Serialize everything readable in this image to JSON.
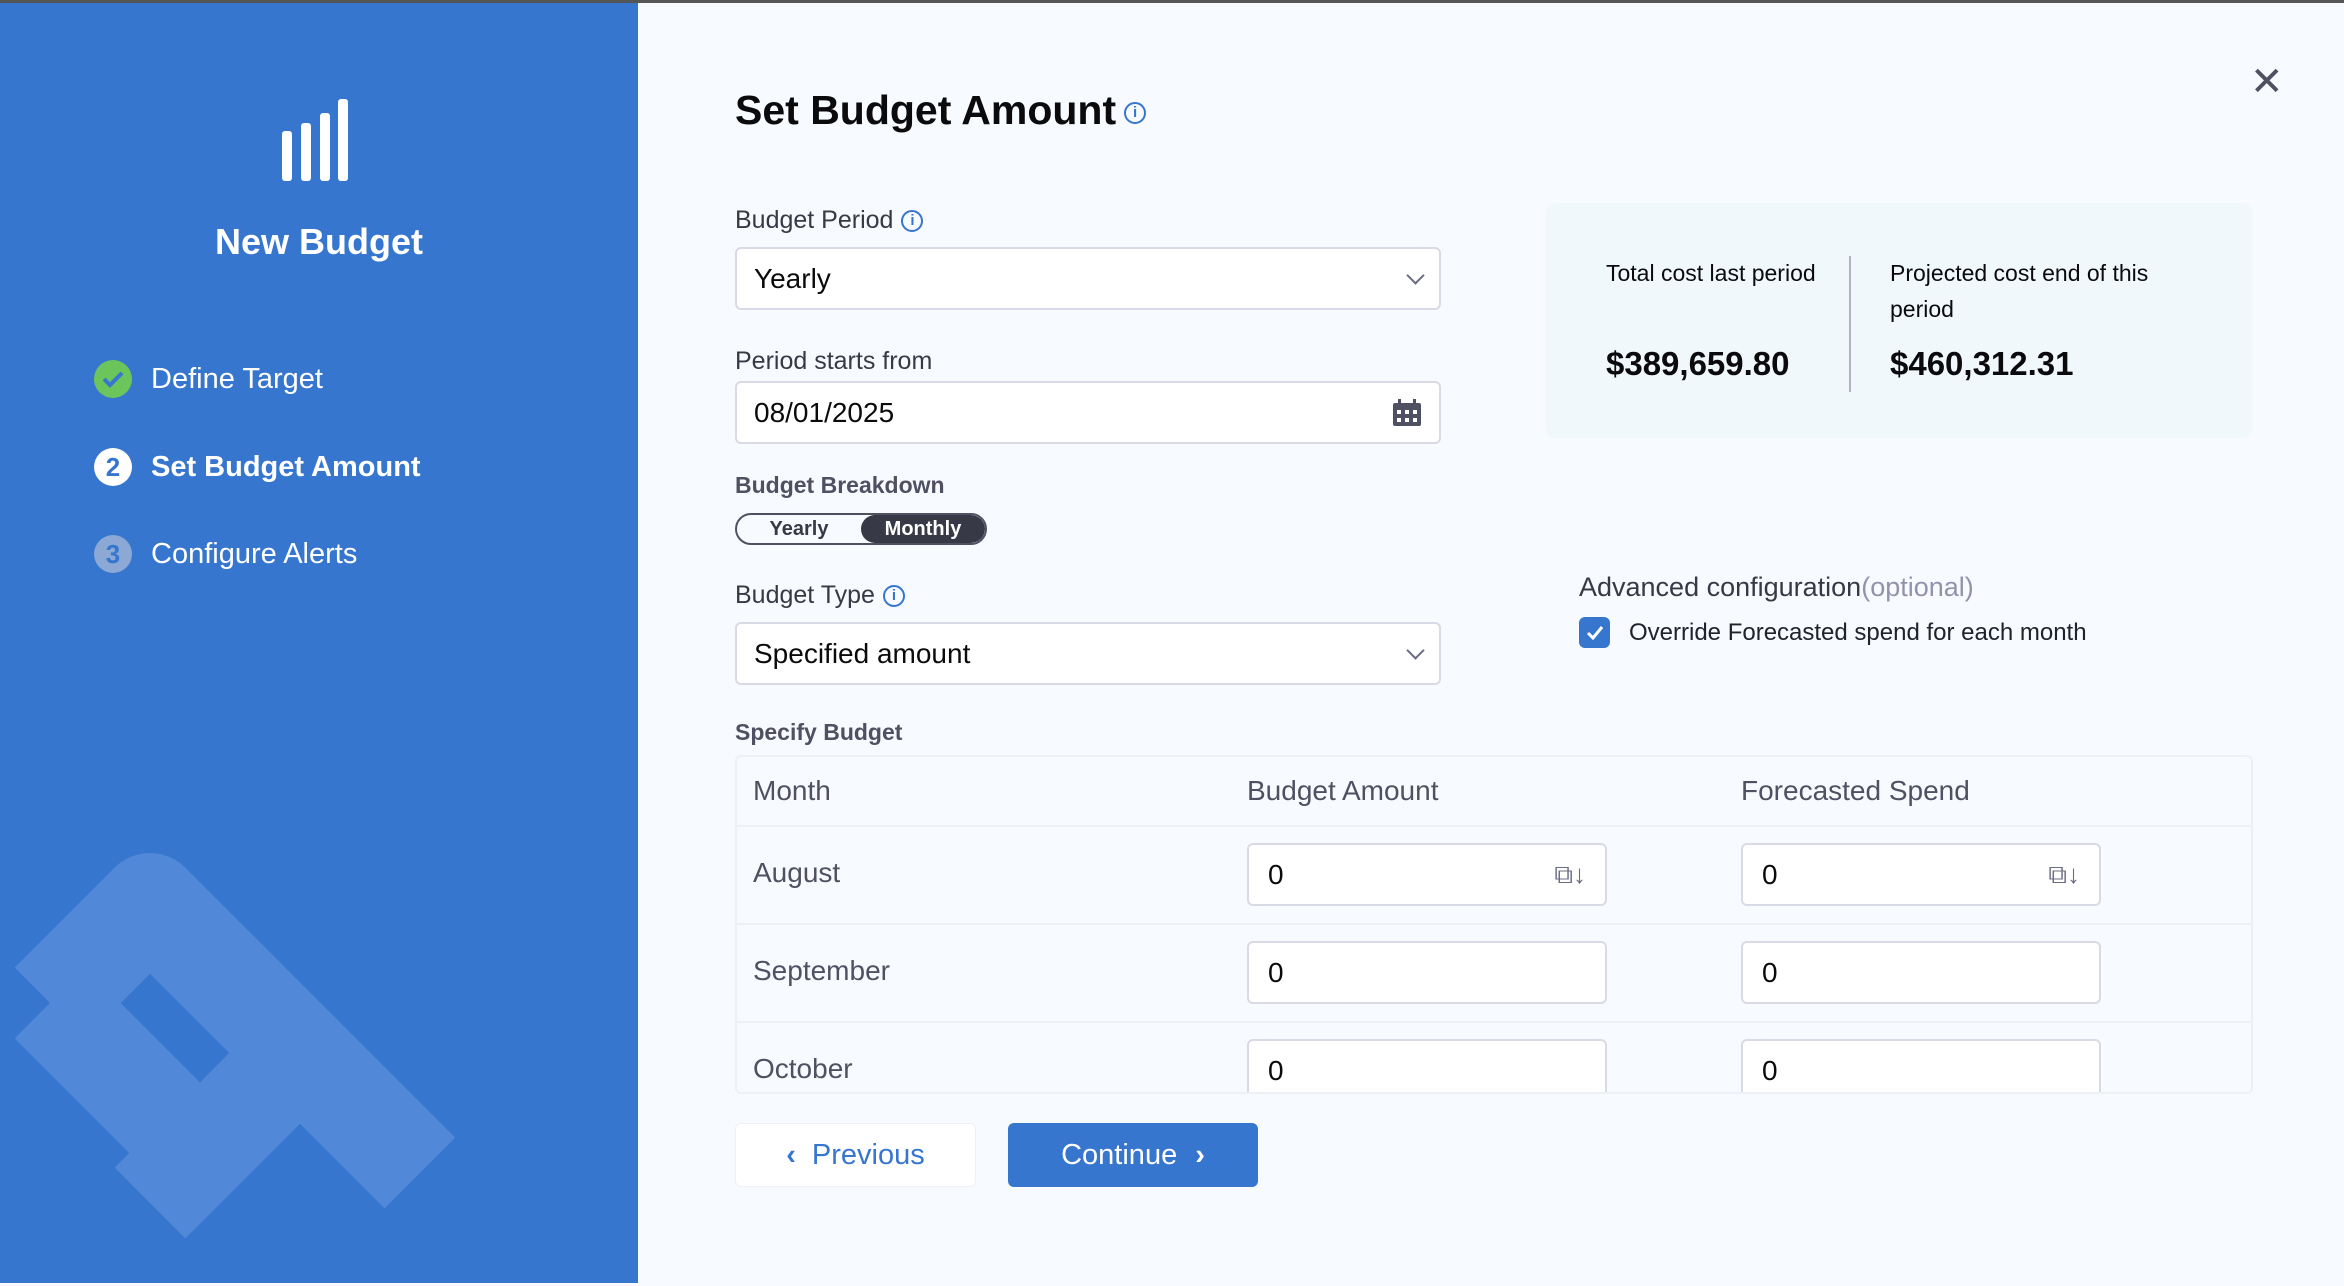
{
  "sidebar": {
    "title": "New Budget",
    "steps": [
      {
        "label": "Define Target",
        "state": "complete"
      },
      {
        "number": "2",
        "label": "Set Budget Amount",
        "state": "active"
      },
      {
        "number": "3",
        "label": "Configure Alerts",
        "state": "pending"
      }
    ]
  },
  "main": {
    "title": "Set Budget Amount",
    "budget_period": {
      "label": "Budget Period",
      "value": "Yearly"
    },
    "period_start": {
      "label": "Period starts from",
      "value": "08/01/2025"
    },
    "breakdown": {
      "label": "Budget Breakdown",
      "options": [
        "Yearly",
        "Monthly"
      ],
      "selected": "Monthly"
    },
    "budget_type": {
      "label": "Budget Type",
      "value": "Specified amount"
    },
    "stats": {
      "last_label": "Total cost last period",
      "last_value": "$389,659.80",
      "projected_label": "Projected cost end of this period",
      "projected_value": "$460,312.31"
    },
    "advanced": {
      "label": "Advanced configuration",
      "optional": "(optional)",
      "checkbox_label": "Override Forecasted spend for each month",
      "checked": true
    },
    "specify": {
      "label": "Specify Budget",
      "headers": [
        "Month",
        "Budget Amount",
        "Forecasted Spend"
      ],
      "rows": [
        {
          "month": "August",
          "budget": "0",
          "forecast": "0"
        },
        {
          "month": "September",
          "budget": "0",
          "forecast": "0"
        },
        {
          "month": "October",
          "budget": "0",
          "forecast": "0"
        }
      ]
    },
    "previous": "Previous",
    "continue": "Continue"
  },
  "colors": {
    "sidebar": "#3676CF",
    "primary": "#3676CF",
    "success": "#6BC55B"
  }
}
